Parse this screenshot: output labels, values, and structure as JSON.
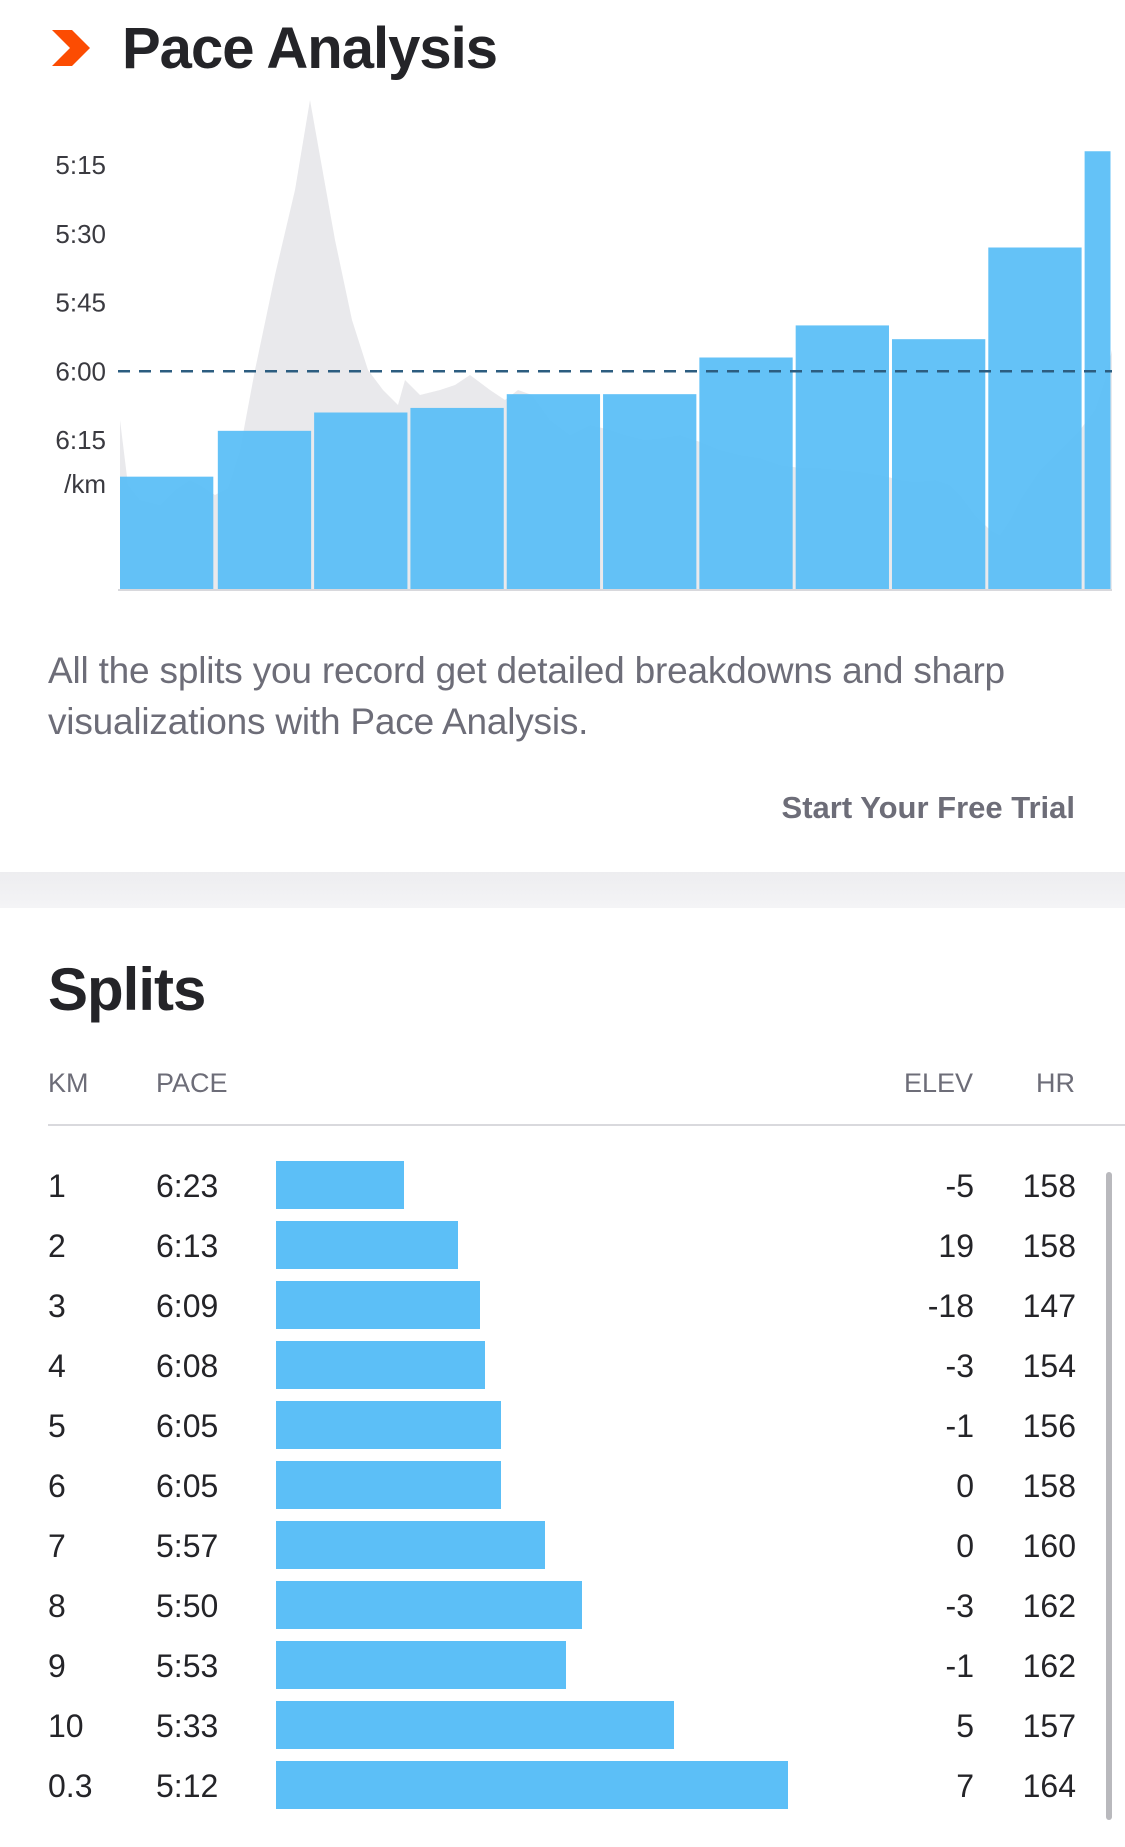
{
  "header": {
    "title": "Pace Analysis",
    "icon": "chevron-right-icon",
    "accent_color": "#fc4c02"
  },
  "chart_data": {
    "type": "bar",
    "title": "Pace Analysis",
    "y_tick_labels": [
      "5:15",
      "5:30",
      "5:45",
      "6:00",
      "6:15"
    ],
    "y_unit_label": "/km",
    "y_inverted": true,
    "reference_line": {
      "value": "6:00",
      "style": "dashed"
    },
    "categories": [
      "1",
      "2",
      "3",
      "4",
      "5",
      "6",
      "7",
      "8",
      "9",
      "10",
      "0.3"
    ],
    "values_sec_per_km": [
      383,
      373,
      369,
      368,
      365,
      365,
      357,
      350,
      353,
      333,
      312
    ],
    "widths_km": [
      1,
      1,
      1,
      1,
      1,
      1,
      1,
      1,
      1,
      1,
      0.3
    ],
    "bar_color": "#5cbff7",
    "background_area": "elevation profile (gray)",
    "grid": false
  },
  "description": "All the splits you record get detailed breakdowns and sharp visualizations with Pace Analysis.",
  "cta": {
    "label": "Start Your Free Trial"
  },
  "splits": {
    "title": "Splits",
    "columns": {
      "km": "KM",
      "pace": "PACE",
      "elev": "ELEV",
      "hr": "HR"
    },
    "rows": [
      {
        "km": "1",
        "pace": "6:23",
        "elev": "-5",
        "hr": "158"
      },
      {
        "km": "2",
        "pace": "6:13",
        "elev": "19",
        "hr": "158"
      },
      {
        "km": "3",
        "pace": "6:09",
        "elev": "-18",
        "hr": "147"
      },
      {
        "km": "4",
        "pace": "6:08",
        "elev": "-3",
        "hr": "154"
      },
      {
        "km": "5",
        "pace": "6:05",
        "elev": "-1",
        "hr": "156"
      },
      {
        "km": "6",
        "pace": "6:05",
        "elev": "0",
        "hr": "158"
      },
      {
        "km": "7",
        "pace": "5:57",
        "elev": "0",
        "hr": "160"
      },
      {
        "km": "8",
        "pace": "5:50",
        "elev": "-3",
        "hr": "162"
      },
      {
        "km": "9",
        "pace": "5:53",
        "elev": "-1",
        "hr": "162"
      },
      {
        "km": "10",
        "pace": "5:33",
        "elev": "5",
        "hr": "157"
      },
      {
        "km": "0.3",
        "pace": "5:12",
        "elev": "7",
        "hr": "164"
      }
    ],
    "bar_color": "#5cbff7"
  }
}
